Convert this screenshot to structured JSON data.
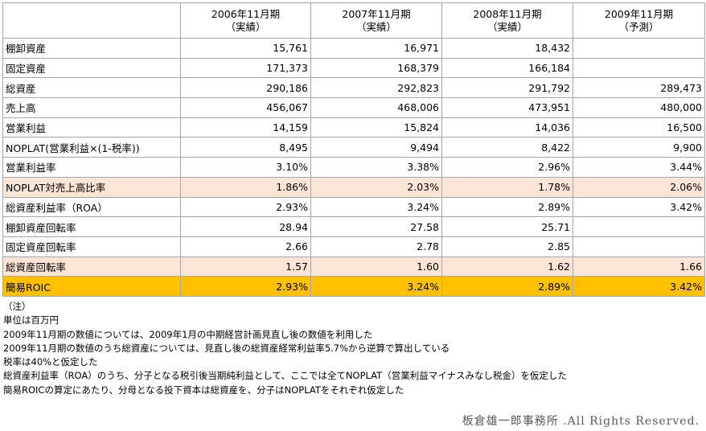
{
  "table": {
    "header": [
      {
        "period": "2006年11月期",
        "status": "（実績）"
      },
      {
        "period": "2007年11月期",
        "status": "（実績）"
      },
      {
        "period": "2008年11月期",
        "status": "（実績）"
      },
      {
        "period": "2009年11月期",
        "status": "（予測）"
      }
    ],
    "rows": [
      [
        "棚卸資産",
        "15,761",
        "16,971",
        "18,432",
        null
      ],
      [
        "固定資産",
        "171,373",
        "168,379",
        "166,184",
        null
      ],
      [
        "総資産",
        "290,186",
        "292,823",
        "291,792",
        "289,473"
      ],
      [
        "売上高",
        "456,067",
        "468,006",
        "473,951",
        "480,000"
      ],
      [
        "営業利益",
        "14,159",
        "15,824",
        "14,036",
        "16,500"
      ],
      [
        "NOPLAT(営業利益×(1-税率))",
        "8,495",
        "9,494",
        "8,422",
        "9,900"
      ],
      [
        "営業利益率",
        "3.10%",
        "3.38%",
        "2.96%",
        "3.44%"
      ],
      [
        "NOPLAT対売上高比率",
        "1.86%",
        "2.03%",
        "1.78%",
        "2.06%"
      ],
      [
        "総資産利益率（ROA）",
        "2.93%",
        "3.24%",
        "2.89%",
        "3.42%"
      ],
      [
        "棚卸資産回転率",
        "28.94",
        "27.58",
        "25.71",
        null
      ],
      [
        "固定資産回転率",
        "2.66",
        "2.78",
        "2.85",
        null
      ],
      [
        "総資産回転率",
        "1.57",
        "1.60",
        "1.62",
        "1.66"
      ],
      [
        "簡易ROIC",
        "2.93%",
        "3.24%",
        "2.89%",
        "3.42%"
      ]
    ]
  },
  "notes": [
    "（注）",
    "単位は百万円",
    "2009年11月期の数値については、2009年1月の中期経営計画見直し後の数値を利用した",
    "2009年11月期の数値のうち総資産については、見直し後の総資産経常利益率5.7%から逆算で算出している",
    "税率は40%と仮定した",
    "総資産利益率（ROA）のうち、分子となる税引後当期純利益として、ここでは全てNOPLAT（営業利益マイナスみなし税金）を仮定した",
    "簡易ROICの算定にあたり、分母となる投下資本は総資産を、分子はNOPLATをそれぞれ仮定した"
  ],
  "footer": "板倉雄一郎事務所 .All Rights Reserved."
}
